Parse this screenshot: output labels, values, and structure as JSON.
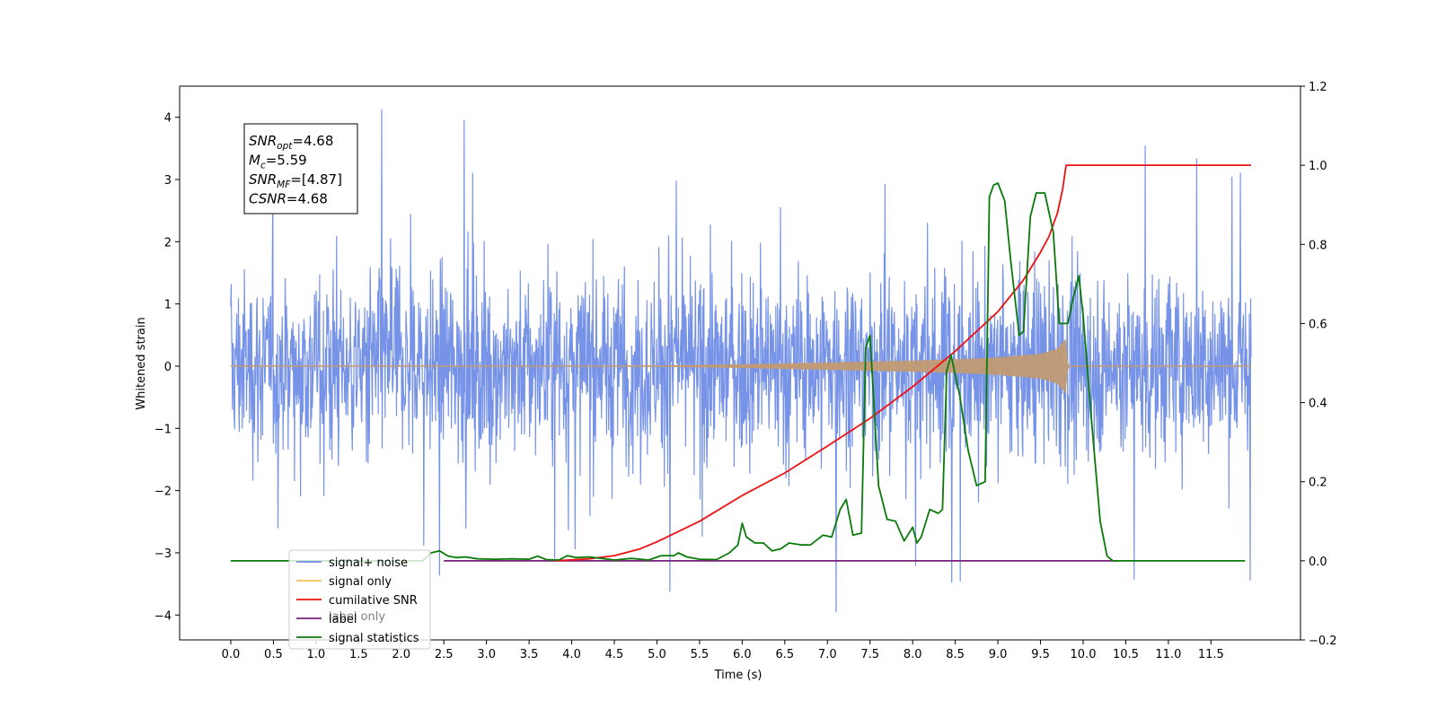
{
  "chart_data": {
    "type": "line",
    "xlabel": "Time (s)",
    "ylabel": "Whitened strain",
    "ylabel_right": "",
    "xlim": [
      -0.6,
      12.55
    ],
    "ylim": [
      -4.4,
      4.5
    ],
    "ylim_right": [
      -0.2,
      1.2
    ],
    "x_ticks": [
      0.0,
      0.5,
      1.0,
      1.5,
      2.0,
      2.5,
      3.0,
      3.5,
      4.0,
      4.5,
      5.0,
      5.5,
      6.0,
      6.5,
      7.0,
      7.5,
      8.0,
      8.5,
      9.0,
      9.5,
      10.0,
      10.5,
      11.0,
      11.5
    ],
    "x_tick_labels": [
      "0.0",
      "0.5",
      "1.0",
      "1.5",
      "2.0",
      "2.5",
      "3.0",
      "3.5",
      "4.0",
      "4.5",
      "5.0",
      "5.5",
      "6.0",
      "6.5",
      "7.0",
      "7.5",
      "8.0",
      "8.5",
      "9.0",
      "9.5",
      "10.0",
      "10.5",
      "11.0",
      "11.5"
    ],
    "y_ticks_left": [
      -4,
      -3,
      -2,
      -1,
      0,
      1,
      2,
      3,
      4
    ],
    "y_tick_labels_left": [
      "−4",
      "−3",
      "−2",
      "−1",
      "0",
      "1",
      "2",
      "3",
      "4"
    ],
    "y_ticks_right": [
      -0.2,
      0.0,
      0.2,
      0.4,
      0.6,
      0.8,
      1.0,
      1.2
    ],
    "y_tick_labels_right": [
      "−0.2",
      "0.0",
      "0.2",
      "0.4",
      "0.6",
      "0.8",
      "1.0",
      "1.2"
    ],
    "grid": false,
    "legend_position": "lower-left",
    "annotation": {
      "lines": [
        {
          "main": "SNR",
          "sub": "opt",
          "rest": "=4.68"
        },
        {
          "main": "M",
          "sub": "c",
          "rest": "=5.59"
        },
        {
          "main": "SNR",
          "sub": "MF",
          "rest": "=[4.87]"
        },
        {
          "main": "CSNR",
          "sub": "",
          "rest": "=4.68"
        }
      ]
    },
    "series": [
      {
        "name": "signal+ noise",
        "axis": "left",
        "color": "#6f8de6",
        "description_kind": "noise",
        "x_range": [
          0.0,
          11.97
        ],
        "amplitude_band": [
          -3.0,
          2.9
        ],
        "spikes": [
          [
            1.77,
            4.12
          ],
          [
            2.74,
            3.95
          ],
          [
            10.73,
            3.54
          ],
          [
            11.33,
            3.33
          ],
          [
            7.1,
            -3.95
          ],
          [
            5.15,
            -3.62
          ],
          [
            11.96,
            -3.44
          ],
          [
            8.46,
            -3.47
          ],
          [
            8.56,
            -3.45
          ],
          [
            2.45,
            -3.36
          ],
          [
            10.6,
            -3.42
          ]
        ]
      },
      {
        "name": "signal only",
        "axis": "left",
        "color": "#f5c05a",
        "blended_color": "#c19a73",
        "description_kind": "chirp",
        "x_range": [
          0.0,
          11.97
        ],
        "envelope": [
          [
            0.0,
            0.0
          ],
          [
            4.0,
            0.005
          ],
          [
            5.0,
            0.01
          ],
          [
            6.0,
            0.03
          ],
          [
            7.0,
            0.06
          ],
          [
            8.0,
            0.09
          ],
          [
            8.5,
            0.11
          ],
          [
            9.0,
            0.14
          ],
          [
            9.5,
            0.2
          ],
          [
            9.7,
            0.28
          ],
          [
            9.8,
            0.45
          ],
          [
            9.82,
            0.0
          ],
          [
            11.97,
            0.0
          ]
        ]
      },
      {
        "name": "cumilative SNR",
        "axis": "right",
        "color": "#ee1111",
        "points": [
          [
            3.8,
            0.0
          ],
          [
            4.2,
            0.005
          ],
          [
            4.5,
            0.013
          ],
          [
            4.8,
            0.03
          ],
          [
            5.0,
            0.048
          ],
          [
            5.5,
            0.1
          ],
          [
            6.0,
            0.165
          ],
          [
            6.5,
            0.222
          ],
          [
            7.0,
            0.29
          ],
          [
            7.5,
            0.36
          ],
          [
            8.0,
            0.44
          ],
          [
            8.5,
            0.53
          ],
          [
            9.0,
            0.63
          ],
          [
            9.3,
            0.71
          ],
          [
            9.5,
            0.78
          ],
          [
            9.6,
            0.82
          ],
          [
            9.7,
            0.88
          ],
          [
            9.76,
            0.94
          ],
          [
            9.8,
            1.0
          ],
          [
            11.97,
            1.0
          ]
        ]
      },
      {
        "name": "label",
        "axis": "right",
        "color": "#7a1f7a",
        "points": [
          [
            2.5,
            0.0
          ],
          [
            10.4,
            0.0
          ]
        ]
      },
      {
        "name": "signal statistics",
        "axis": "right",
        "color": "#0a7a0a",
        "points": [
          [
            0.0,
            0.0
          ],
          [
            2.25,
            0.0
          ],
          [
            2.35,
            0.02
          ],
          [
            2.45,
            0.025
          ],
          [
            2.55,
            0.012
          ],
          [
            2.65,
            0.008
          ],
          [
            2.75,
            0.01
          ],
          [
            2.9,
            0.005
          ],
          [
            3.1,
            0.004
          ],
          [
            3.3,
            0.005
          ],
          [
            3.5,
            0.004
          ],
          [
            3.6,
            0.012
          ],
          [
            3.7,
            0.003
          ],
          [
            3.85,
            0.002
          ],
          [
            3.95,
            0.013
          ],
          [
            4.05,
            0.008
          ],
          [
            4.2,
            0.01
          ],
          [
            4.35,
            0.006
          ],
          [
            4.5,
            0.002
          ],
          [
            4.7,
            0.006
          ],
          [
            4.9,
            0.002
          ],
          [
            5.05,
            0.013
          ],
          [
            5.2,
            0.013
          ],
          [
            5.25,
            0.02
          ],
          [
            5.35,
            0.01
          ],
          [
            5.5,
            0.004
          ],
          [
            5.7,
            0.003
          ],
          [
            5.85,
            0.02
          ],
          [
            5.95,
            0.04
          ],
          [
            6.0,
            0.095
          ],
          [
            6.05,
            0.06
          ],
          [
            6.15,
            0.045
          ],
          [
            6.25,
            0.045
          ],
          [
            6.35,
            0.025
          ],
          [
            6.45,
            0.03
          ],
          [
            6.55,
            0.045
          ],
          [
            6.7,
            0.04
          ],
          [
            6.8,
            0.04
          ],
          [
            6.95,
            0.065
          ],
          [
            7.05,
            0.06
          ],
          [
            7.15,
            0.13
          ],
          [
            7.22,
            0.155
          ],
          [
            7.3,
            0.065
          ],
          [
            7.4,
            0.07
          ],
          [
            7.45,
            0.54
          ],
          [
            7.5,
            0.57
          ],
          [
            7.6,
            0.19
          ],
          [
            7.7,
            0.105
          ],
          [
            7.8,
            0.1
          ],
          [
            7.9,
            0.05
          ],
          [
            8.0,
            0.085
          ],
          [
            8.05,
            0.045
          ],
          [
            8.1,
            0.06
          ],
          [
            8.2,
            0.13
          ],
          [
            8.3,
            0.12
          ],
          [
            8.35,
            0.13
          ],
          [
            8.4,
            0.48
          ],
          [
            8.45,
            0.52
          ],
          [
            8.55,
            0.42
          ],
          [
            8.65,
            0.28
          ],
          [
            8.75,
            0.19
          ],
          [
            8.85,
            0.2
          ],
          [
            8.9,
            0.92
          ],
          [
            8.95,
            0.95
          ],
          [
            9.0,
            0.955
          ],
          [
            9.08,
            0.91
          ],
          [
            9.15,
            0.76
          ],
          [
            9.25,
            0.57
          ],
          [
            9.3,
            0.58
          ],
          [
            9.38,
            0.87
          ],
          [
            9.45,
            0.93
          ],
          [
            9.55,
            0.93
          ],
          [
            9.65,
            0.83
          ],
          [
            9.72,
            0.6
          ],
          [
            9.82,
            0.6
          ],
          [
            9.88,
            0.66
          ],
          [
            9.95,
            0.72
          ],
          [
            10.0,
            0.62
          ],
          [
            10.1,
            0.35
          ],
          [
            10.2,
            0.1
          ],
          [
            10.28,
            0.012
          ],
          [
            10.35,
            0.0
          ],
          [
            11.9,
            0.0
          ]
        ]
      }
    ],
    "legend": [
      {
        "label": "signal+ noise",
        "color": "#6f8de6"
      },
      {
        "label": "signal only",
        "color": "#f5c05a"
      },
      {
        "label": "cumilative SNR",
        "color": "#ee1111"
      },
      {
        "label": "label",
        "color": "#7a1f7a"
      },
      {
        "label": "signal statistics",
        "color": "#0a7a0a"
      }
    ],
    "legend_ghost_texts": [
      "label only"
    ]
  }
}
